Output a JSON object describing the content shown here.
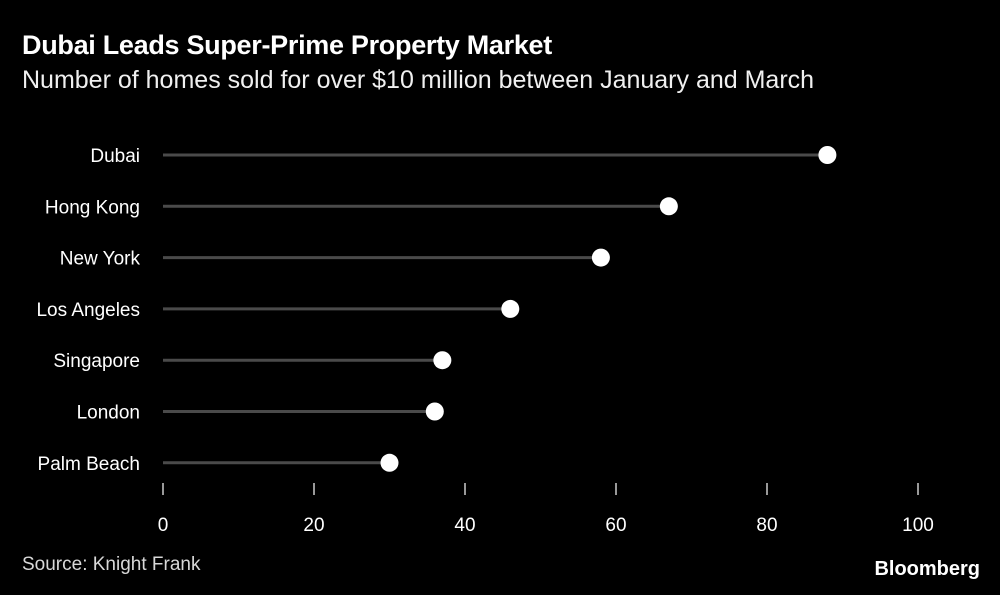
{
  "title": "Dubai Leads Super-Prime Property Market",
  "subtitle": "Number of homes sold for over $10 million between January and March",
  "source": "Source: Knight Frank",
  "brand": "Bloomberg",
  "colors": {
    "background": "#000000",
    "stem": "#4a4a4a",
    "dot": "#ffffff",
    "text": "#ffffff",
    "axis": "#cccccc"
  },
  "chart_data": {
    "type": "lollipop",
    "categories": [
      "Dubai",
      "Hong Kong",
      "New York",
      "Los Angeles",
      "Singapore",
      "London",
      "Palm Beach"
    ],
    "values": [
      88,
      67,
      58,
      46,
      37,
      36,
      30
    ],
    "xlim": [
      0,
      100
    ],
    "xticks": [
      "0",
      "20",
      "40",
      "60",
      "80",
      "100"
    ],
    "grid": false,
    "legend": "none"
  }
}
